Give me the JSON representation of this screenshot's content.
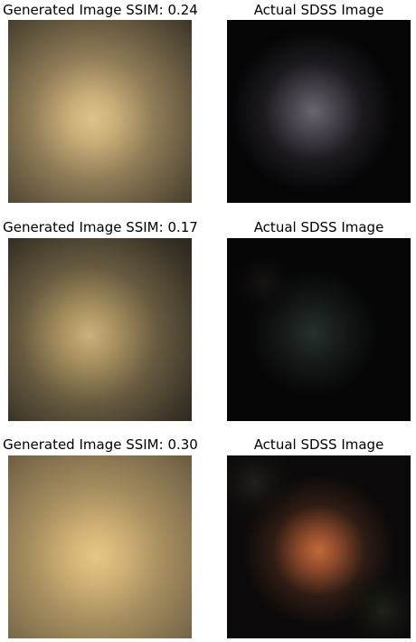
{
  "panels": [
    {
      "generated_title": "Generated Image SSIM: 0.24",
      "actual_title": "Actual SDSS Image"
    },
    {
      "generated_title": "Generated Image SSIM: 0.17",
      "actual_title": "Actual SDSS Image"
    },
    {
      "generated_title": "Generated Image SSIM: 0.30",
      "actual_title": "Actual SDSS Image"
    }
  ]
}
